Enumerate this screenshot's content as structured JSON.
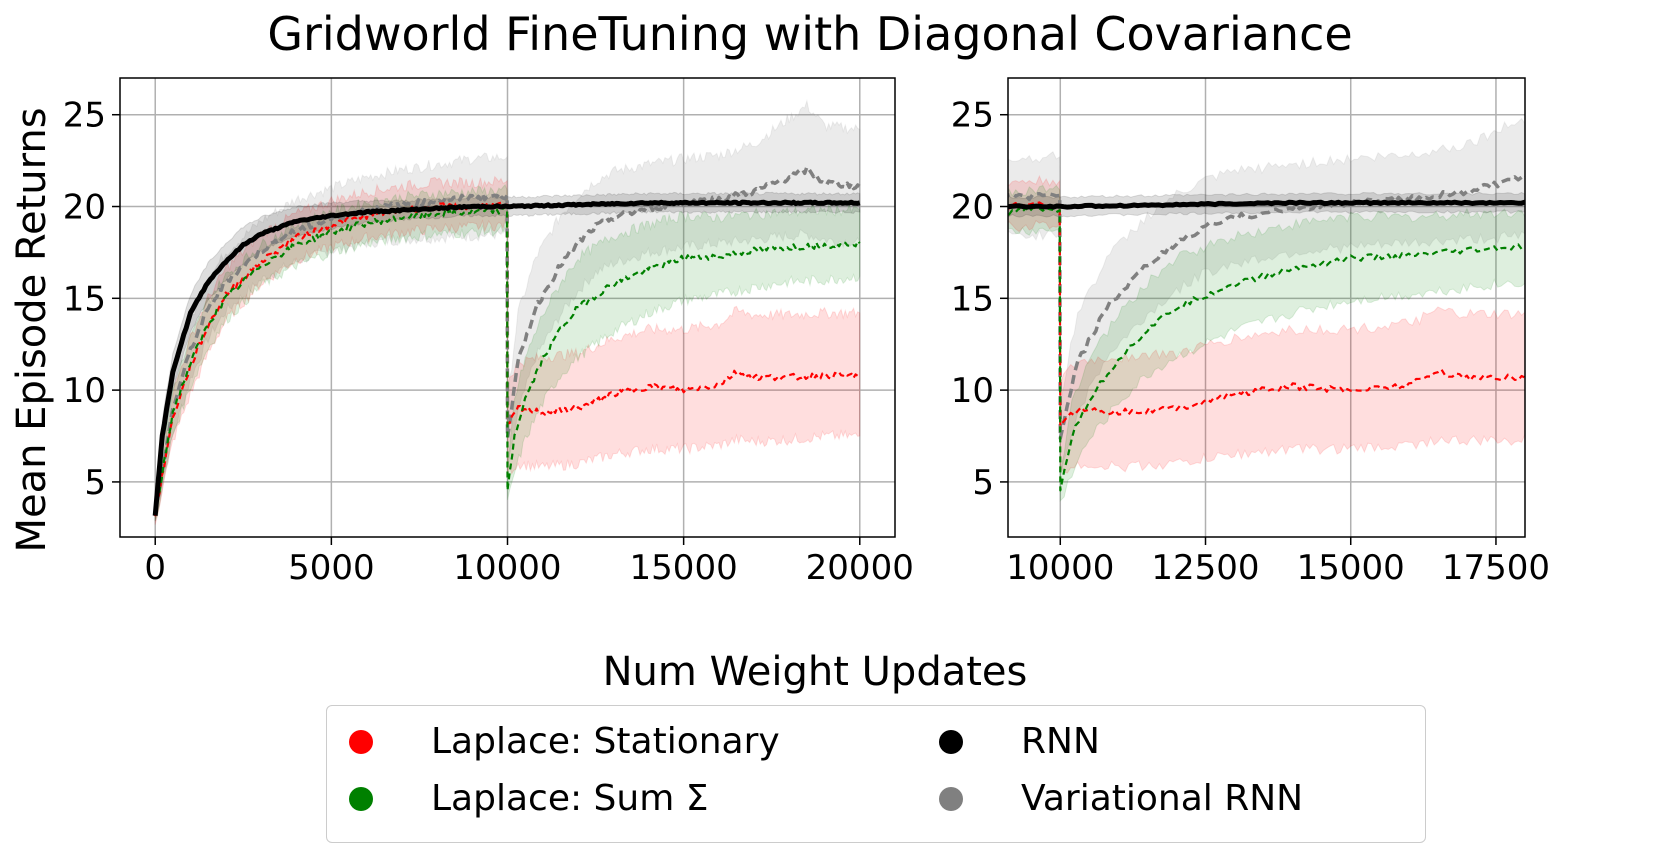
{
  "chart_data": {
    "type": "line",
    "title": "Gridworld FineTuning with Diagonal Covariance",
    "xlabel": "Num Weight Updates",
    "ylabel": "Mean Episode Returns",
    "grid": true,
    "colors": {
      "stationary": "#ff0000",
      "sum": "#008000",
      "rnn": "#000000",
      "vrnn": "#808080"
    },
    "panels": [
      {
        "name": "full",
        "xlim": [
          -1000,
          21000
        ],
        "ylim": [
          2,
          27
        ],
        "xticks": [
          0,
          5000,
          10000,
          15000,
          20000
        ],
        "xtick_labels": [
          "0",
          "5000",
          "10000",
          "15000",
          "20000"
        ],
        "yticks": [
          5,
          10,
          15,
          20,
          25
        ],
        "ytick_labels": [
          "5",
          "10",
          "15",
          "20",
          "25"
        ]
      },
      {
        "name": "zoom",
        "xlim": [
          9100,
          18000
        ],
        "ylim": [
          2,
          27
        ],
        "xticks": [
          10000,
          12500,
          15000,
          17500
        ],
        "xtick_labels": [
          "10000",
          "12500",
          "15000",
          "17500"
        ],
        "yticks": [
          5,
          10,
          15,
          20,
          25
        ],
        "ytick_labels": [
          "5",
          "10",
          "15",
          "20",
          "25"
        ]
      }
    ],
    "series": [
      {
        "name": "Laplace: Stationary",
        "key": "stationary",
        "dashed": true,
        "x": [
          0,
          500,
          1000,
          1500,
          2000,
          3000,
          4000,
          5000,
          6000,
          7000,
          8000,
          9000,
          9990,
          10000,
          10300,
          11000,
          12000,
          13000,
          14000,
          15000,
          16000,
          16500,
          17000,
          18000,
          19000,
          20000
        ],
        "y": [
          3.2,
          8.5,
          11.3,
          13.5,
          15.2,
          17.0,
          18.3,
          19.0,
          19.5,
          19.8,
          20.0,
          20.0,
          20.1,
          8.0,
          9.0,
          8.8,
          9.0,
          9.8,
          10.2,
          10.0,
          10.3,
          11.0,
          10.7,
          10.7,
          10.8,
          10.8
        ],
        "lower": [
          2.8,
          7.2,
          9.8,
          12.0,
          13.8,
          15.8,
          17.1,
          17.8,
          18.3,
          18.6,
          18.8,
          18.9,
          19.0,
          5.5,
          6.0,
          5.8,
          6.0,
          6.5,
          6.8,
          6.8,
          7.0,
          7.3,
          7.2,
          7.3,
          7.5,
          7.5
        ],
        "upper": [
          3.6,
          9.8,
          12.8,
          15.0,
          16.6,
          18.5,
          19.6,
          20.3,
          20.8,
          21.1,
          21.3,
          21.3,
          21.4,
          10.5,
          11.5,
          11.8,
          12.0,
          12.8,
          13.3,
          13.3,
          13.6,
          14.3,
          14.1,
          14.1,
          14.2,
          14.2
        ]
      },
      {
        "name": "Laplace: Sum Σ",
        "key": "sum",
        "dashed": true,
        "x": [
          0,
          500,
          1000,
          1500,
          2000,
          3000,
          4000,
          5000,
          6000,
          7000,
          8000,
          9000,
          9990,
          10000,
          10200,
          10500,
          11000,
          11500,
          12000,
          13000,
          14000,
          15000,
          16000,
          17000,
          18000,
          19000,
          20000
        ],
        "y": [
          3.2,
          8.8,
          11.5,
          13.6,
          15.0,
          16.8,
          17.9,
          18.6,
          19.1,
          19.4,
          19.6,
          19.7,
          19.8,
          4.6,
          7.5,
          9.5,
          11.7,
          13.3,
          14.5,
          15.8,
          16.6,
          17.2,
          17.3,
          17.6,
          17.8,
          17.9,
          18.0
        ],
        "lower": [
          2.8,
          7.6,
          10.2,
          12.3,
          13.8,
          15.7,
          16.8,
          17.5,
          18.0,
          18.3,
          18.5,
          18.6,
          18.7,
          3.8,
          5.5,
          7.3,
          9.3,
          10.8,
          11.8,
          13.2,
          14.2,
          14.9,
          15.2,
          15.6,
          15.9,
          16.0,
          16.2
        ],
        "upper": [
          3.6,
          10.0,
          12.8,
          14.9,
          16.2,
          17.9,
          19.0,
          19.7,
          20.2,
          20.5,
          20.7,
          20.8,
          20.9,
          5.5,
          9.5,
          11.7,
          14.1,
          15.8,
          17.2,
          18.4,
          19.0,
          19.5,
          19.4,
          19.6,
          19.7,
          19.8,
          19.8
        ]
      },
      {
        "name": "RNN",
        "key": "rnn",
        "dashed": false,
        "x": [
          0,
          200,
          500,
          1000,
          1500,
          2000,
          2500,
          3000,
          4000,
          5000,
          6000,
          7000,
          8000,
          9000,
          10000,
          12000,
          14000,
          16000,
          18000,
          20000
        ],
        "y": [
          3.2,
          7.5,
          11.0,
          14.2,
          15.9,
          17.0,
          17.9,
          18.5,
          19.2,
          19.5,
          19.7,
          19.8,
          19.9,
          20.0,
          20.0,
          20.1,
          20.2,
          20.2,
          20.2,
          20.2
        ],
        "lower": [
          2.9,
          6.6,
          10.0,
          13.2,
          14.9,
          16.0,
          16.9,
          17.6,
          18.4,
          18.8,
          19.1,
          19.3,
          19.4,
          19.5,
          19.5,
          19.6,
          19.7,
          19.7,
          19.7,
          19.7
        ],
        "upper": [
          3.5,
          8.4,
          12.0,
          15.2,
          16.9,
          18.0,
          18.9,
          19.4,
          20.0,
          20.2,
          20.3,
          20.3,
          20.4,
          20.5,
          20.5,
          20.6,
          20.7,
          20.7,
          20.7,
          20.7
        ]
      },
      {
        "name": "Variational RNN",
        "key": "vrnn",
        "dashed": true,
        "x": [
          0,
          500,
          1000,
          1500,
          2000,
          3000,
          4000,
          5000,
          6000,
          7000,
          8000,
          9000,
          9990,
          10000,
          10300,
          10800,
          11500,
          12000,
          12500,
          13000,
          14000,
          15000,
          16000,
          17000,
          18000,
          18500,
          19000,
          20000
        ],
        "y": [
          3.2,
          9.0,
          12.2,
          14.4,
          15.9,
          17.6,
          18.7,
          19.3,
          19.8,
          20.1,
          20.3,
          20.5,
          20.6,
          7.5,
          11.5,
          14.5,
          16.8,
          18.0,
          18.9,
          19.4,
          19.9,
          20.2,
          20.4,
          20.8,
          21.6,
          22.0,
          21.3,
          21.1
        ],
        "lower": [
          2.8,
          7.5,
          10.6,
          12.8,
          14.3,
          16.0,
          17.0,
          17.6,
          18.0,
          18.2,
          18.3,
          18.4,
          18.5,
          5.5,
          8.8,
          11.8,
          14.1,
          15.4,
          16.4,
          16.9,
          17.5,
          17.8,
          18.0,
          18.2,
          18.4,
          18.5,
          18.2,
          18.0
        ],
        "upper": [
          3.6,
          10.5,
          13.8,
          16.0,
          17.5,
          19.2,
          20.4,
          21.0,
          21.6,
          22.0,
          22.3,
          22.6,
          22.7,
          9.5,
          14.2,
          17.2,
          19.5,
          20.6,
          21.4,
          21.9,
          22.3,
          22.6,
          22.8,
          23.4,
          24.8,
          25.5,
          24.4,
          24.2
        ]
      }
    ],
    "legend": {
      "placement": "bottom-center",
      "entries": [
        {
          "label": "Laplace: Stationary",
          "key": "stationary"
        },
        {
          "label": "RNN",
          "key": "rnn"
        },
        {
          "label": "Laplace: Sum Σ",
          "key": "sum"
        },
        {
          "label": "Variational RNN",
          "key": "vrnn"
        }
      ]
    }
  }
}
